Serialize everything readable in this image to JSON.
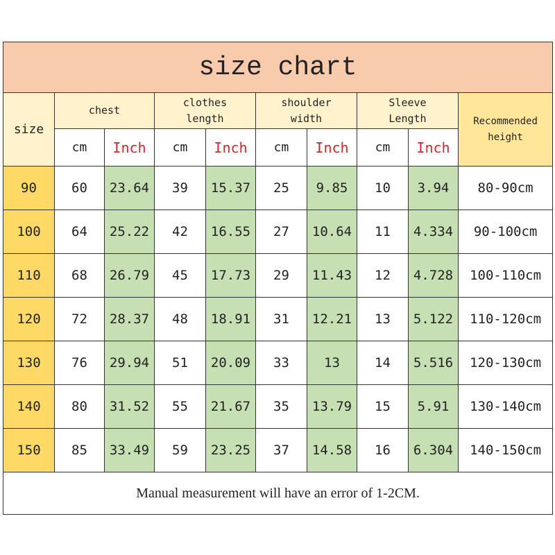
{
  "title": "size chart",
  "header": {
    "size": "size",
    "groups": [
      "chest",
      "clothes\nlength",
      "shoulder\nwidth",
      "Sleeve\nLength"
    ],
    "recommended": "Recommended\nheight",
    "unit_cm": "cm",
    "unit_inch": "Inch"
  },
  "table": {
    "rows": [
      [
        "90",
        "60",
        "23.64",
        "39",
        "15.37",
        "25",
        "9.85",
        "10",
        "3.94",
        "80-90cm"
      ],
      [
        "100",
        "64",
        "25.22",
        "42",
        "16.55",
        "27",
        "10.64",
        "11",
        "4.334",
        "90-100cm"
      ],
      [
        "110",
        "68",
        "26.79",
        "45",
        "17.73",
        "29",
        "11.43",
        "12",
        "4.728",
        "100-110cm"
      ],
      [
        "120",
        "72",
        "28.37",
        "48",
        "18.91",
        "31",
        "12.21",
        "13",
        "5.122",
        "110-120cm"
      ],
      [
        "130",
        "76",
        "29.94",
        "51",
        "20.09",
        "33",
        "13",
        "14",
        "5.516",
        "120-130cm"
      ],
      [
        "140",
        "80",
        "31.52",
        "55",
        "21.67",
        "35",
        "13.79",
        "15",
        "5.91",
        "130-140cm"
      ],
      [
        "150",
        "85",
        "33.49",
        "59",
        "23.25",
        "37",
        "14.58",
        "16",
        "6.304",
        "140-150cm"
      ]
    ]
  },
  "footer": "Manual measurement will have an error of 1-2CM."
}
